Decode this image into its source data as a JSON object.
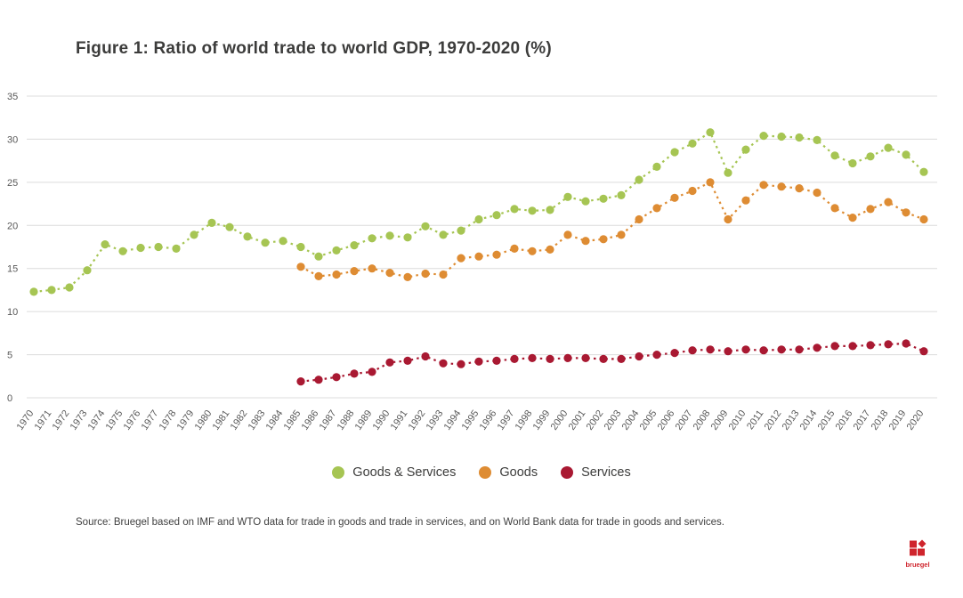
{
  "chart_data": {
    "type": "line",
    "title": "Figure 1: Ratio of world trade to world GDP, 1970-2020 (%)",
    "xlabel": "",
    "ylabel": "",
    "ylim": [
      0,
      35
    ],
    "y_ticks": [
      0,
      5,
      10,
      15,
      20,
      25,
      30,
      35
    ],
    "grid": true,
    "line_style": "dashed-with-markers",
    "legend_position": "bottom-center",
    "x": [
      1970,
      1971,
      1972,
      1973,
      1974,
      1975,
      1976,
      1977,
      1978,
      1979,
      1980,
      1981,
      1982,
      1983,
      1984,
      1985,
      1986,
      1987,
      1988,
      1989,
      1990,
      1991,
      1992,
      1993,
      1994,
      1995,
      1996,
      1997,
      1998,
      1999,
      2000,
      2001,
      2002,
      2003,
      2004,
      2005,
      2006,
      2007,
      2008,
      2009,
      2010,
      2011,
      2012,
      2013,
      2014,
      2015,
      2016,
      2017,
      2018,
      2019,
      2020
    ],
    "series": [
      {
        "name": "Goods & Services",
        "color": "#a6c553",
        "values": [
          12.3,
          12.5,
          12.8,
          14.8,
          17.8,
          17.0,
          17.4,
          17.5,
          17.3,
          18.9,
          20.3,
          19.8,
          18.7,
          18.0,
          18.2,
          17.5,
          16.4,
          17.1,
          17.7,
          18.5,
          18.8,
          18.6,
          19.9,
          18.9,
          19.4,
          20.7,
          21.2,
          21.9,
          21.7,
          21.8,
          23.3,
          22.8,
          23.1,
          23.5,
          25.3,
          26.8,
          28.5,
          29.5,
          30.8,
          26.1,
          28.8,
          30.4,
          30.3,
          30.2,
          29.9,
          28.1,
          27.2,
          28.0,
          29.0,
          28.2,
          26.2
        ]
      },
      {
        "name": "Goods",
        "color": "#de8c33",
        "values": [
          null,
          null,
          null,
          null,
          null,
          null,
          null,
          null,
          null,
          null,
          null,
          null,
          null,
          null,
          null,
          15.2,
          14.1,
          14.3,
          14.7,
          15.0,
          14.5,
          14.0,
          14.4,
          14.3,
          16.2,
          16.4,
          16.6,
          17.3,
          17.0,
          17.2,
          18.9,
          18.2,
          18.4,
          18.9,
          20.7,
          22.0,
          23.2,
          24.0,
          25.0,
          20.7,
          22.9,
          24.7,
          24.5,
          24.3,
          23.8,
          22.0,
          20.9,
          21.9,
          22.7,
          21.5,
          20.7
        ]
      },
      {
        "name": "Services",
        "color": "#a91932",
        "values": [
          null,
          null,
          null,
          null,
          null,
          null,
          null,
          null,
          null,
          null,
          null,
          null,
          null,
          null,
          null,
          1.9,
          2.1,
          2.4,
          2.8,
          3.0,
          4.1,
          4.3,
          4.8,
          4.0,
          3.9,
          4.2,
          4.3,
          4.5,
          4.6,
          4.5,
          4.6,
          4.6,
          4.5,
          4.5,
          4.8,
          5.0,
          5.2,
          5.5,
          5.6,
          5.4,
          5.6,
          5.5,
          5.6,
          5.6,
          5.8,
          6.0,
          6.0,
          6.1,
          6.2,
          6.3,
          5.4
        ]
      }
    ]
  },
  "source_note": "Source: Bruegel based on IMF and WTO data for trade in goods and trade in services, and on World Bank data for trade in goods and services.",
  "logo": {
    "text": "bruegel",
    "color": "#cf242c"
  }
}
